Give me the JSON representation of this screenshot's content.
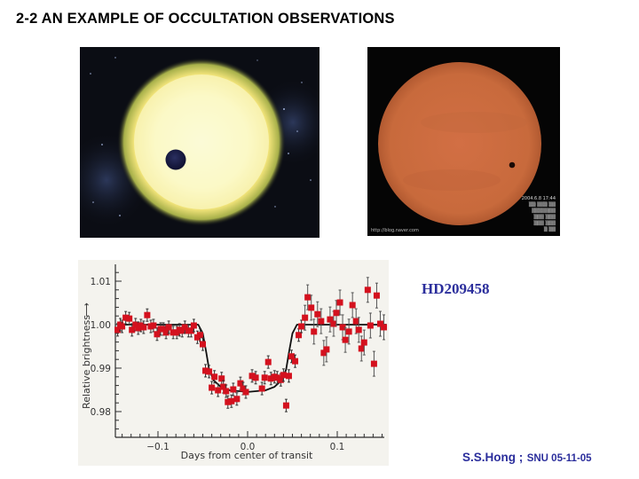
{
  "slide": {
    "title": "2-2 AN EXAMPLE OF OCCULTATION OBSERVATIONS",
    "target_label": "HD209458",
    "footer": {
      "author": "S.S.Hong ;",
      "institution_date": "SNU 05-11-05"
    }
  },
  "images": {
    "left": {
      "description": "Artist's illustration of an exoplanet transiting a yellow star against a starry background",
      "star_color": "#f7f2a8",
      "planet_color": "#1c1f4a"
    },
    "right": {
      "description": "Photograph of the 2004 transit of Venus across an orange-filtered Sun",
      "sun_color": "#c9683c",
      "credit_text": "http://blog.naver.com",
      "caption_lines": [
        "2004.6.8 17:44",
        "",
        "",
        "",
        "",
        ""
      ]
    }
  },
  "colors": {
    "title_text": "#000000",
    "accent_text": "#2b2e9c",
    "data_point": "#d4111e",
    "model_curve": "#111111",
    "chart_bg": "#f4f3ee"
  },
  "chart_data": {
    "type": "scatter",
    "title": "",
    "xlabel": "Days from center of transit",
    "ylabel": "Relative brightness",
    "xlim": [
      -0.145,
      0.155
    ],
    "ylim": [
      0.9745,
      1.0145
    ],
    "x_ticks": [
      -0.1,
      0.0,
      0.1
    ],
    "x_tick_labels": [
      "−0.1",
      "0.0",
      "0.1"
    ],
    "y_ticks": [
      0.98,
      0.99,
      1.0,
      1.01
    ],
    "y_tick_labels": [
      "0.98",
      "0.99",
      "1.00",
      "1.01"
    ],
    "grid": false,
    "legend": null,
    "series": [
      {
        "name": "Observed brightness (HD209458)",
        "style": "red squares with error bars",
        "points": [
          [
            -0.145,
            0.9988
          ],
          [
            -0.142,
            1.0
          ],
          [
            -0.14,
            0.9996
          ],
          [
            -0.136,
            1.0016
          ],
          [
            -0.132,
            1.0014
          ],
          [
            -0.129,
            0.9988
          ],
          [
            -0.125,
            1.0
          ],
          [
            -0.122,
            0.9992
          ],
          [
            -0.119,
            0.9998
          ],
          [
            -0.116,
            0.9994
          ],
          [
            -0.112,
            1.0022
          ],
          [
            -0.108,
            0.9996
          ],
          [
            -0.105,
            0.9998
          ],
          [
            -0.101,
            0.9978
          ],
          [
            -0.097,
            0.999
          ],
          [
            -0.094,
            0.999
          ],
          [
            -0.091,
            0.9982
          ],
          [
            -0.088,
            0.9994
          ],
          [
            -0.083,
            0.9982
          ],
          [
            -0.079,
            0.9982
          ],
          [
            -0.076,
            0.9988
          ],
          [
            -0.073,
            0.9986
          ],
          [
            -0.07,
            0.9994
          ],
          [
            -0.066,
            0.9986
          ],
          [
            -0.063,
            0.9986
          ],
          [
            -0.06,
            0.9998
          ],
          [
            -0.056,
            0.9971
          ],
          [
            -0.053,
            0.9976
          ],
          [
            -0.05,
            0.9955
          ],
          [
            -0.047,
            0.9894
          ],
          [
            -0.043,
            0.9892
          ],
          [
            -0.04,
            0.9855
          ],
          [
            -0.037,
            0.988
          ],
          [
            -0.033,
            0.9849
          ],
          [
            -0.029,
            0.9876
          ],
          [
            -0.027,
            0.9857
          ],
          [
            -0.024,
            0.9847
          ],
          [
            -0.022,
            0.9822
          ],
          [
            -0.018,
            0.9824
          ],
          [
            -0.016,
            0.9851
          ],
          [
            -0.012,
            0.9829
          ],
          [
            -0.008,
            0.9865
          ],
          [
            -0.005,
            0.9853
          ],
          [
            -0.002,
            0.9845
          ],
          [
            0.005,
            0.9882
          ],
          [
            0.009,
            0.9878
          ],
          [
            0.016,
            0.9853
          ],
          [
            0.019,
            0.9878
          ],
          [
            0.023,
            0.9914
          ],
          [
            0.026,
            0.9876
          ],
          [
            0.03,
            0.988
          ],
          [
            0.033,
            0.9878
          ],
          [
            0.037,
            0.9873
          ],
          [
            0.04,
            0.9884
          ],
          [
            0.043,
            0.9814
          ],
          [
            0.046,
            0.9882
          ],
          [
            0.049,
            0.9927
          ],
          [
            0.053,
            0.9916
          ],
          [
            0.057,
            0.9976
          ],
          [
            0.06,
            0.9996
          ],
          [
            0.064,
            1.0016
          ],
          [
            0.067,
            1.0063
          ],
          [
            0.071,
            1.0039
          ],
          [
            0.074,
            0.9984
          ],
          [
            0.078,
            1.0024
          ],
          [
            0.082,
            1.0008
          ],
          [
            0.085,
            0.9935
          ],
          [
            0.088,
            0.9943
          ],
          [
            0.092,
            1.0012
          ],
          [
            0.096,
            1.0002
          ],
          [
            0.099,
            1.0027
          ],
          [
            0.103,
            1.0051
          ],
          [
            0.106,
            0.9994
          ],
          [
            0.109,
            0.9965
          ],
          [
            0.113,
            0.9984
          ],
          [
            0.117,
            1.0045
          ],
          [
            0.121,
            1.0008
          ],
          [
            0.124,
            0.9988
          ],
          [
            0.127,
            0.9945
          ],
          [
            0.13,
            0.9959
          ],
          [
            0.134,
            1.008
          ],
          [
            0.137,
            0.9998
          ],
          [
            0.141,
            0.991
          ],
          [
            0.144,
            1.0067
          ],
          [
            0.148,
            1.0002
          ],
          [
            0.152,
            0.9994
          ]
        ]
      },
      {
        "name": "Transit model fit",
        "style": "solid black line",
        "points": [
          [
            -0.145,
            1.0
          ],
          [
            -0.055,
            1.0
          ],
          [
            -0.05,
            0.998
          ],
          [
            -0.046,
            0.9935
          ],
          [
            -0.043,
            0.9897
          ],
          [
            -0.038,
            0.9872
          ],
          [
            -0.03,
            0.9857
          ],
          [
            -0.02,
            0.9849
          ],
          [
            0.0,
            0.9845
          ],
          [
            0.02,
            0.9849
          ],
          [
            0.03,
            0.9857
          ],
          [
            0.038,
            0.9872
          ],
          [
            0.043,
            0.9897
          ],
          [
            0.046,
            0.9935
          ],
          [
            0.05,
            0.998
          ],
          [
            0.055,
            1.0
          ],
          [
            0.155,
            1.0
          ]
        ]
      }
    ]
  }
}
